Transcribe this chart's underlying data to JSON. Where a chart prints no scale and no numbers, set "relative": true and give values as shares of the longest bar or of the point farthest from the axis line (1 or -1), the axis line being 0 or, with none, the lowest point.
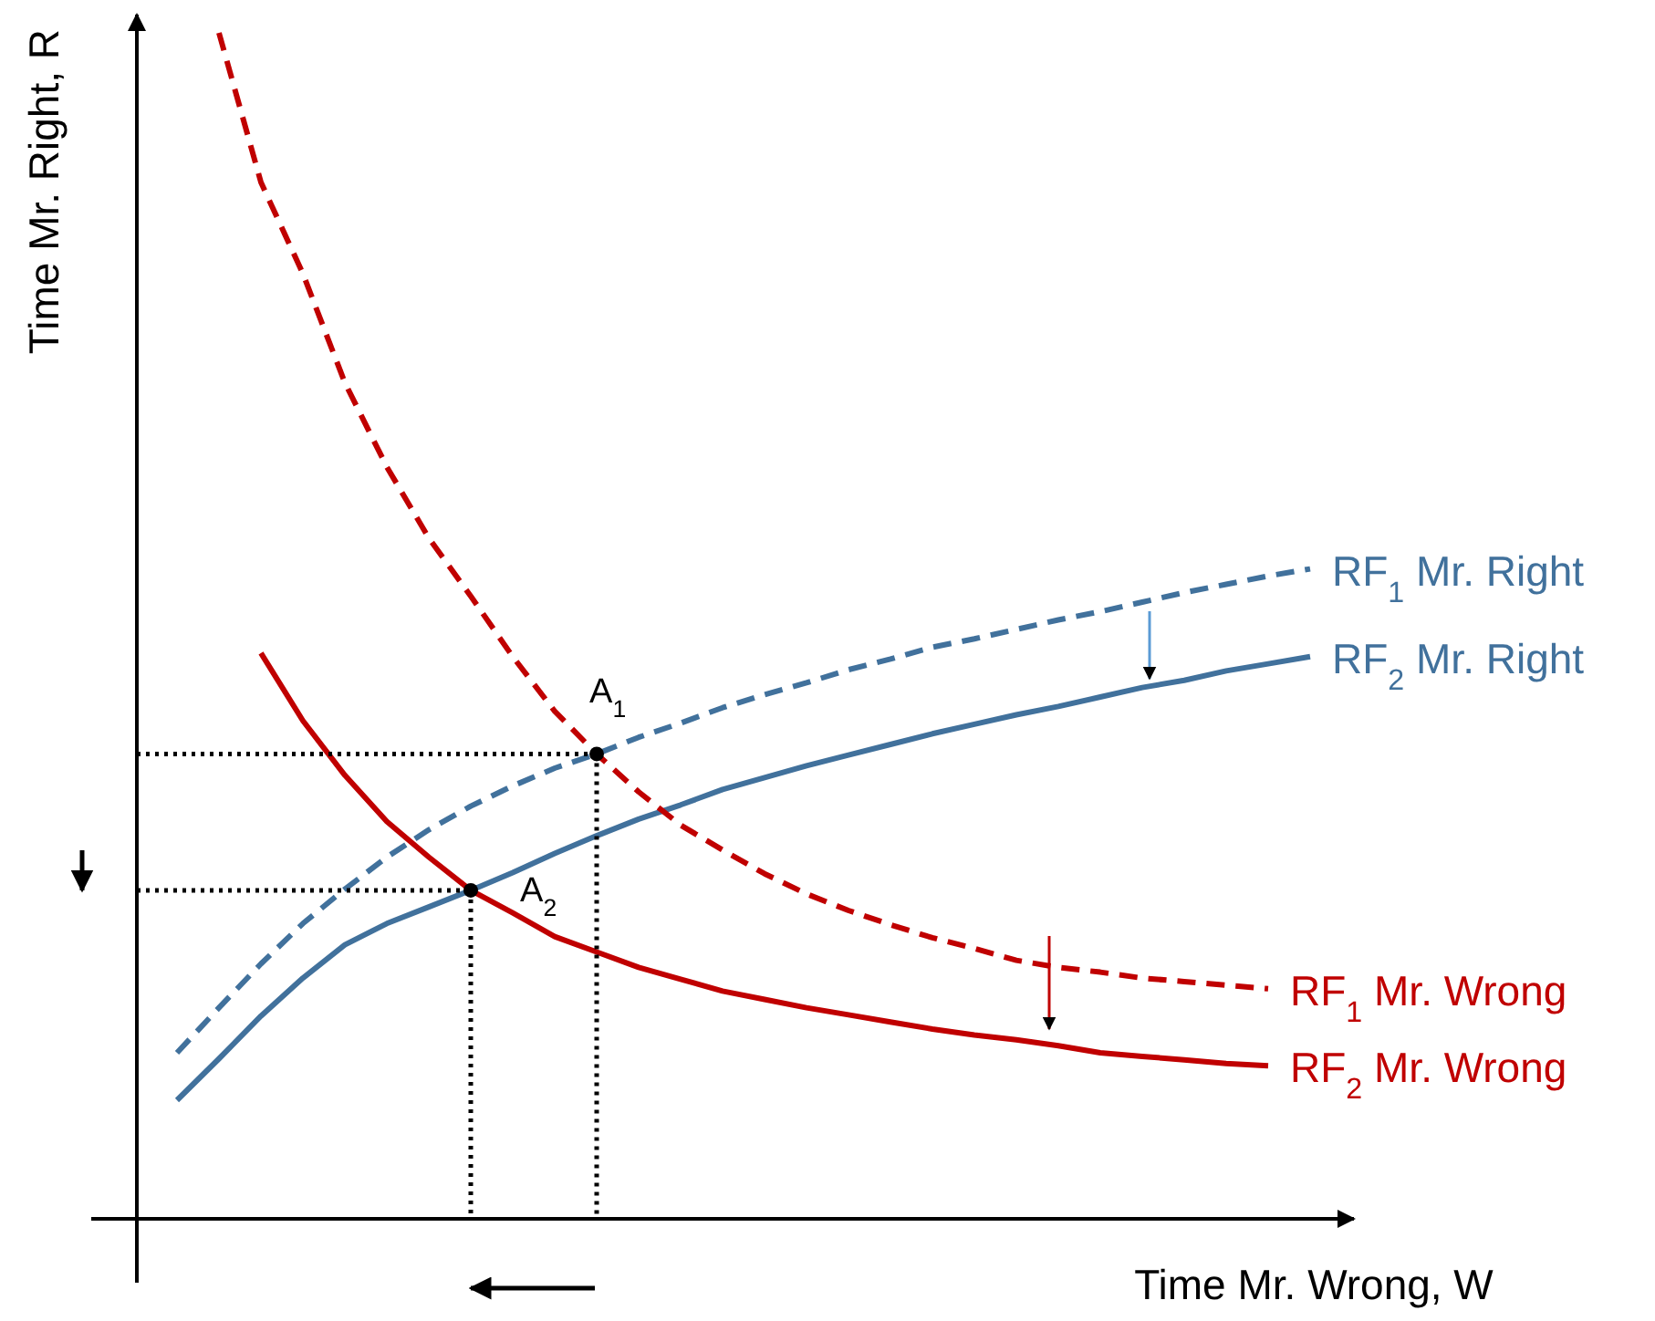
{
  "chart_data": {
    "type": "line",
    "relative": true,
    "xlabel": "Time Mr. Wrong, W",
    "ylabel": "Time Mr. Right, R",
    "legend": false,
    "categories": [
      null,
      null,
      null,
      null,
      null,
      null,
      null,
      null,
      null,
      null,
      null,
      null,
      null,
      null,
      null,
      null,
      null,
      null,
      null,
      null,
      null,
      null,
      null,
      null,
      null,
      null,
      null,
      null
    ],
    "series": [
      {
        "name": "RF$_{1}$ Mr. Right",
        "color": "#41719c",
        "line_style": "dashed",
        "values": [
          0.14,
          0.178,
          0.215,
          0.249,
          0.278,
          0.305,
          0.328,
          0.348,
          0.365,
          0.38,
          0.392,
          0.406,
          0.418,
          0.431,
          0.442,
          0.452,
          0.463,
          0.472,
          0.482,
          0.489,
          0.497,
          0.505,
          0.512,
          0.52,
          0.528,
          0.535,
          0.542,
          0.548
        ]
      },
      {
        "name": "RF$_{2}$ Mr. Right",
        "color": "#41719c",
        "line_style": "solid",
        "values": [
          0.1,
          0.135,
          0.171,
          0.203,
          0.231,
          0.249,
          0.263,
          0.277,
          0.292,
          0.308,
          0.323,
          0.337,
          0.349,
          0.362,
          0.372,
          0.382,
          0.391,
          0.4,
          0.409,
          0.417,
          0.425,
          0.432,
          0.44,
          0.448,
          0.454,
          0.462,
          0.468,
          0.474
        ]
      },
      {
        "name": "RF$_{1}$ Mr. Wrong",
        "color": "#c00000",
        "line_style": "dashed",
        "values": [
          null,
          1.0,
          0.874,
          0.797,
          0.705,
          0.634,
          0.574,
          0.525,
          0.474,
          0.428,
          0.392,
          0.36,
          0.332,
          0.311,
          0.291,
          0.274,
          0.26,
          0.248,
          0.237,
          0.228,
          0.218,
          0.212,
          0.208,
          0.203,
          0.2,
          0.197,
          0.194,
          null
        ]
      },
      {
        "name": "RF$_{2}$ Mr. Wrong",
        "color": "#c00000",
        "line_style": "solid",
        "values": [
          null,
          null,
          0.477,
          0.42,
          0.374,
          0.335,
          0.305,
          0.277,
          0.258,
          0.238,
          0.225,
          0.212,
          0.202,
          0.192,
          0.185,
          0.178,
          0.172,
          0.166,
          0.16,
          0.155,
          0.151,
          0.146,
          0.14,
          0.137,
          0.134,
          0.131,
          0.129,
          null
        ]
      }
    ],
    "annotations": [
      "A$_{1}$",
      "A$_{2}$"
    ]
  }
}
